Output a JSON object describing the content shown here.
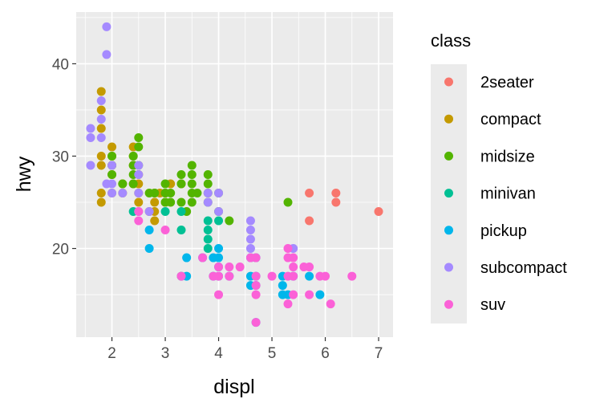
{
  "chart_data": {
    "type": "scatter",
    "title": "",
    "xlabel": "displ",
    "ylabel": "hwy",
    "xlim": [
      1.33,
      7.27
    ],
    "ylim": [
      10.4,
      45.6
    ],
    "xticks": [
      2,
      3,
      4,
      5,
      6,
      7
    ],
    "yticks": [
      20,
      30,
      40
    ],
    "xtick_labels": [
      "2",
      "3",
      "4",
      "5",
      "6",
      "7"
    ],
    "ytick_labels": [
      "20",
      "30",
      "40"
    ],
    "grid": true,
    "panel_background": "#EBEBEB",
    "legend": {
      "title": "class",
      "placement": "right"
    },
    "series": [
      {
        "name": "2seater",
        "color": "#F8766D",
        "points": [
          [
            5.7,
            26
          ],
          [
            5.7,
            23
          ],
          [
            6.2,
            26
          ],
          [
            6.2,
            25
          ],
          [
            7.0,
            24
          ]
        ]
      },
      {
        "name": "compact",
        "color": "#C49A00",
        "points": [
          [
            1.8,
            29
          ],
          [
            2.0,
            31
          ],
          [
            2.0,
            30
          ],
          [
            2.8,
            26
          ],
          [
            3.1,
            27
          ],
          [
            1.8,
            26
          ],
          [
            1.8,
            25
          ],
          [
            2.0,
            28
          ],
          [
            2.4,
            27
          ],
          [
            2.4,
            30
          ],
          [
            2.4,
            31
          ],
          [
            2.2,
            26
          ],
          [
            2.2,
            27
          ],
          [
            2.5,
            27
          ],
          [
            2.5,
            25
          ],
          [
            3.0,
            26
          ],
          [
            3.3,
            27
          ],
          [
            1.8,
            37
          ],
          [
            1.8,
            35
          ],
          [
            1.8,
            33
          ],
          [
            1.8,
            30
          ],
          [
            2.0,
            29
          ],
          [
            2.8,
            23
          ],
          [
            2.8,
            25
          ],
          [
            2.8,
            24
          ],
          [
            2.5,
            26
          ],
          [
            2.0,
            26
          ],
          [
            2.7,
            24
          ],
          [
            2.4,
            29
          ],
          [
            2.5,
            28
          ],
          [
            3.0,
            25
          ],
          [
            2.9,
            26
          ]
        ]
      },
      {
        "name": "midsize",
        "color": "#53B400",
        "points": [
          [
            2.4,
            30
          ],
          [
            2.4,
            29
          ],
          [
            2.5,
            32
          ],
          [
            2.5,
            31
          ],
          [
            2.5,
            29
          ],
          [
            2.8,
            26
          ],
          [
            3.0,
            26
          ],
          [
            3.1,
            25
          ],
          [
            3.3,
            28
          ],
          [
            3.5,
            29
          ],
          [
            3.5,
            28
          ],
          [
            3.5,
            26
          ],
          [
            3.6,
            26
          ],
          [
            3.8,
            28
          ],
          [
            3.8,
            26
          ],
          [
            3.8,
            25
          ],
          [
            3.8,
            27
          ],
          [
            2.0,
            29
          ],
          [
            2.0,
            28
          ],
          [
            2.7,
            26
          ],
          [
            3.0,
            25
          ],
          [
            3.3,
            27
          ],
          [
            3.4,
            24
          ],
          [
            4.0,
            24
          ],
          [
            4.2,
            23
          ],
          [
            2.4,
            28
          ],
          [
            3.5,
            27
          ],
          [
            3.5,
            25
          ],
          [
            4.0,
            26
          ],
          [
            5.3,
            25
          ],
          [
            2.0,
            30
          ],
          [
            2.2,
            27
          ],
          [
            2.4,
            27
          ],
          [
            3.1,
            26
          ],
          [
            3.3,
            25
          ],
          [
            3.0,
            27
          ]
        ]
      },
      {
        "name": "minivan",
        "color": "#00C094",
        "points": [
          [
            2.4,
            24
          ],
          [
            3.0,
            24
          ],
          [
            3.3,
            22
          ],
          [
            3.3,
            24
          ],
          [
            3.8,
            23
          ],
          [
            3.8,
            21
          ],
          [
            3.8,
            22
          ],
          [
            4.0,
            23
          ],
          [
            3.3,
            17
          ],
          [
            3.8,
            20
          ]
        ]
      },
      {
        "name": "pickup",
        "color": "#00B6EB",
        "points": [
          [
            2.7,
            20
          ],
          [
            2.7,
            22
          ],
          [
            3.4,
            19
          ],
          [
            3.4,
            17
          ],
          [
            3.9,
            17
          ],
          [
            4.0,
            18
          ],
          [
            4.0,
            17
          ],
          [
            4.2,
            17
          ],
          [
            4.6,
            19
          ],
          [
            4.6,
            17
          ],
          [
            4.6,
            16
          ],
          [
            4.7,
            17
          ],
          [
            4.7,
            16
          ],
          [
            4.7,
            19
          ],
          [
            5.2,
            17
          ],
          [
            5.2,
            15
          ],
          [
            5.2,
            16
          ],
          [
            5.4,
            17
          ],
          [
            5.7,
            17
          ],
          [
            5.9,
            15
          ],
          [
            4.7,
            12
          ],
          [
            4.0,
            20
          ],
          [
            3.9,
            19
          ],
          [
            5.3,
            15
          ],
          [
            3.7,
            19
          ],
          [
            4.0,
            19
          ]
        ]
      },
      {
        "name": "subcompact",
        "color": "#A58AFF",
        "points": [
          [
            1.6,
            33
          ],
          [
            1.6,
            32
          ],
          [
            1.6,
            29
          ],
          [
            1.8,
            36
          ],
          [
            1.8,
            34
          ],
          [
            1.8,
            32
          ],
          [
            1.9,
            44
          ],
          [
            1.9,
            41
          ],
          [
            2.0,
            29
          ],
          [
            2.0,
            27
          ],
          [
            2.0,
            26
          ],
          [
            2.5,
            29
          ],
          [
            2.5,
            28
          ],
          [
            2.5,
            26
          ],
          [
            2.2,
            26
          ],
          [
            2.5,
            24
          ],
          [
            3.8,
            26
          ],
          [
            4.0,
            26
          ],
          [
            4.6,
            23
          ],
          [
            4.6,
            22
          ],
          [
            4.6,
            21
          ],
          [
            4.6,
            20
          ],
          [
            5.4,
            20
          ],
          [
            4.0,
            24
          ],
          [
            3.8,
            25
          ],
          [
            2.7,
            24
          ],
          [
            1.9,
            27
          ]
        ]
      },
      {
        "name": "suv",
        "color": "#FB61D7",
        "points": [
          [
            2.5,
            23
          ],
          [
            2.5,
            24
          ],
          [
            3.0,
            22
          ],
          [
            3.3,
            17
          ],
          [
            3.7,
            19
          ],
          [
            4.0,
            18
          ],
          [
            4.0,
            17
          ],
          [
            4.0,
            15
          ],
          [
            4.2,
            17
          ],
          [
            4.4,
            18
          ],
          [
            4.6,
            19
          ],
          [
            4.7,
            19
          ],
          [
            4.7,
            17
          ],
          [
            4.7,
            15
          ],
          [
            4.7,
            12
          ],
          [
            5.0,
            17
          ],
          [
            5.3,
            20
          ],
          [
            5.3,
            19
          ],
          [
            5.3,
            17
          ],
          [
            5.4,
            18
          ],
          [
            5.4,
            17
          ],
          [
            5.4,
            15
          ],
          [
            5.6,
            18
          ],
          [
            5.7,
            18
          ],
          [
            5.9,
            17
          ],
          [
            6.0,
            17
          ],
          [
            6.1,
            14
          ],
          [
            6.5,
            17
          ],
          [
            5.3,
            14
          ],
          [
            5.7,
            15
          ],
          [
            4.7,
            16
          ],
          [
            5.4,
            19
          ],
          [
            4.2,
            18
          ],
          [
            3.9,
            17
          ]
        ]
      }
    ]
  }
}
